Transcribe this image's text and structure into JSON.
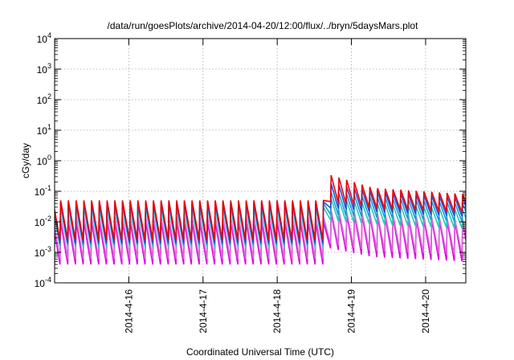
{
  "chart_data": {
    "type": "line",
    "title": "/data/run/goesPlots/archive/2014-04-20/12:00/flux/../bryn/5daysMars.plot",
    "xlabel": "Coordinated Universal Time (UTC)",
    "ylabel": "cGy/day",
    "x_range": [
      "2014-04-15 00:00",
      "2014-04-20 13:00"
    ],
    "y_scale": "log",
    "ylim": [
      0.0001,
      10000
    ],
    "grid": true,
    "x_ticks": [
      "2014-4-16",
      "2014-4-17",
      "2014-4-18",
      "2014-4-19",
      "2014-4-20"
    ],
    "y_ticks": [
      {
        "base": "10",
        "exp": "-4"
      },
      {
        "base": "10",
        "exp": "-3"
      },
      {
        "base": "10",
        "exp": "-2"
      },
      {
        "base": "10",
        "exp": "-1"
      },
      {
        "base": "10",
        "exp": "0"
      },
      {
        "base": "10",
        "exp": "1"
      },
      {
        "base": "10",
        "exp": "2"
      },
      {
        "base": "10",
        "exp": "3"
      },
      {
        "base": "10",
        "exp": "4"
      }
    ],
    "sawtooth_period_hours": 2.5,
    "event_onset": "2014-04-18 15:00",
    "series": [
      {
        "color": "#e8000b",
        "quiet_peak": 0.05,
        "quiet_trough": 0.0025,
        "event_peak": 0.4,
        "event_trough": 0.05,
        "end_peak": 0.08,
        "end_trough": 0.02
      },
      {
        "color": "#1f4fd8",
        "quiet_peak": 0.045,
        "quiet_trough": 0.002,
        "event_peak": 0.2,
        "event_trough": 0.03,
        "end_peak": 0.06,
        "end_trough": 0.015
      },
      {
        "color": "#1a9bd8",
        "quiet_peak": 0.04,
        "quiet_trough": 0.0018,
        "event_peak": 0.1,
        "event_trough": 0.018,
        "end_peak": 0.04,
        "end_trough": 0.01
      },
      {
        "color": "#27c8b8",
        "quiet_peak": 0.03,
        "quiet_trough": 0.0015,
        "event_peak": 0.06,
        "event_trough": 0.012,
        "end_peak": 0.025,
        "end_trough": 0.006
      },
      {
        "color": "#d966d9",
        "quiet_peak": 0.015,
        "quiet_trough": 0.0006,
        "event_peak": 0.025,
        "event_trough": 0.002,
        "end_peak": 0.012,
        "end_trough": 0.0008
      },
      {
        "color": "#e000e0",
        "quiet_peak": 0.01,
        "quiet_trough": 0.0004,
        "event_peak": 0.02,
        "event_trough": 0.0015,
        "end_peak": 0.01,
        "end_trough": 0.0005
      }
    ]
  }
}
